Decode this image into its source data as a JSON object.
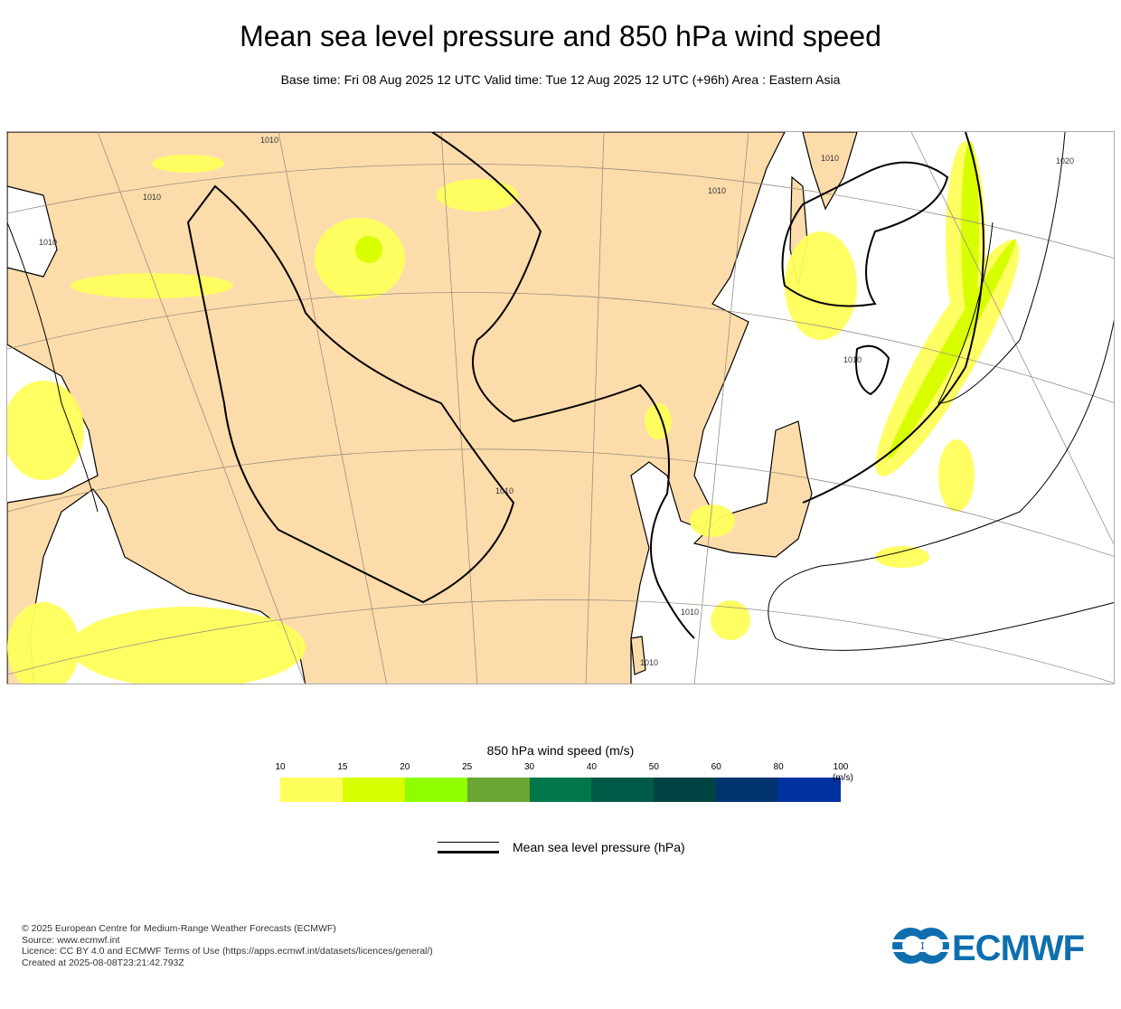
{
  "header": {
    "title": "Mean sea level pressure and 850 hPa wind speed",
    "subtitle": "Base time: Fri 08 Aug 2025 12 UTC Valid time: Tue 12 Aug 2025 12 UTC (+96h) Area : Eastern Asia"
  },
  "map": {
    "area": "Eastern Asia",
    "land_color": "#fddcab",
    "sea_color": "#ffffff",
    "contour_labels": [
      "1010",
      "1010",
      "1010",
      "1010",
      "1010",
      "1010",
      "1010",
      "1010",
      "1010",
      "1020"
    ]
  },
  "legend": {
    "title": "850 hPa wind speed (m/s)",
    "ticks": [
      "10",
      "15",
      "20",
      "25",
      "30",
      "40",
      "50",
      "60",
      "80",
      "100"
    ],
    "unit": "(m/s)",
    "colors": [
      "#ffff5c",
      "#d7ff00",
      "#8fff00",
      "#6aa633",
      "#00764a",
      "#005a48",
      "#004343",
      "#003270",
      "#0033a0"
    ],
    "msl_label": "Mean sea level pressure (hPa)"
  },
  "footer": {
    "lines": [
      "© 2025 European Centre for Medium-Range Weather Forecasts (ECMWF)",
      "Source: www.ecmwf.int",
      "Licence: CC BY 4.0 and ECMWF Terms of Use (https://apps.ecmwf.int/datasets/licences/general/)",
      "Created at 2025-08-08T23:21:42.793Z"
    ],
    "logo_text": "ECMWF"
  }
}
